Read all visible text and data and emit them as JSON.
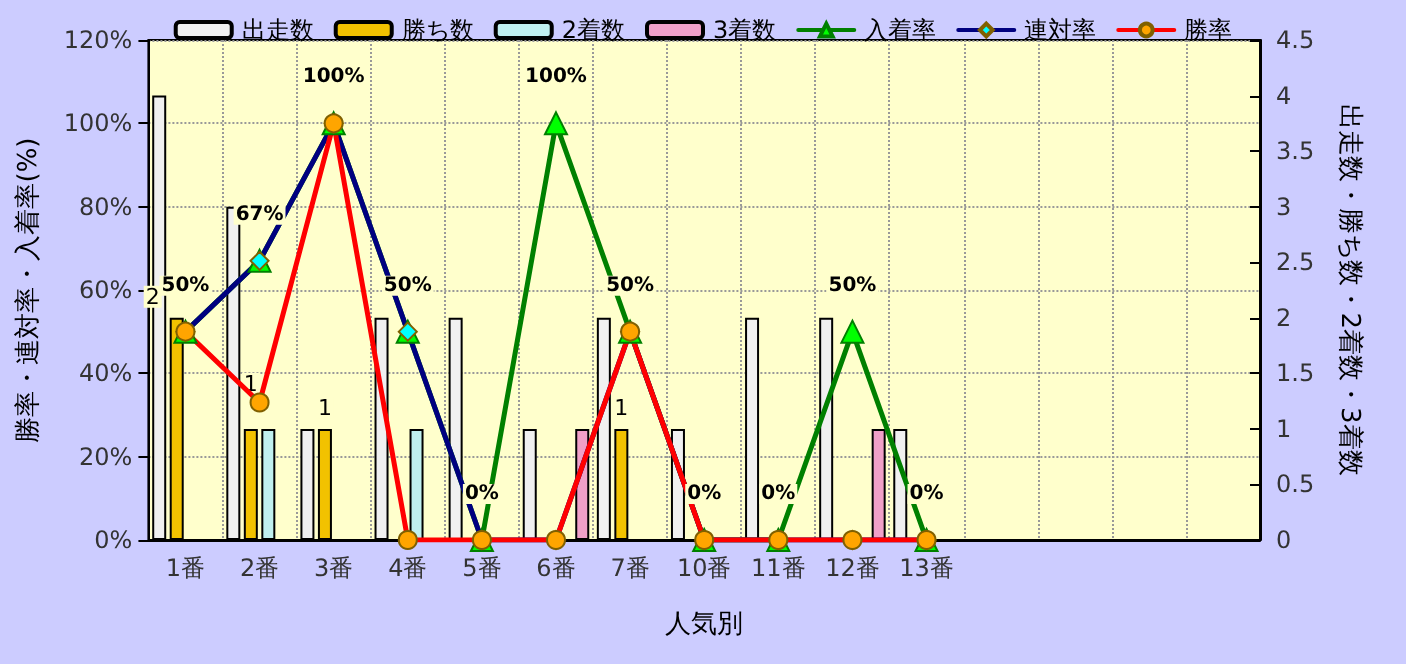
{
  "chart_data": {
    "type": "bar",
    "xlabel": "人気別",
    "ylabel": "勝率・連対率・入着率(%)",
    "y2label": "出走数・勝ち数・2着数・3着数",
    "categories": [
      "1番",
      "2番",
      "3番",
      "4番",
      "5番",
      "6番",
      "7番",
      "10番",
      "11番",
      "12番",
      "13番",
      null,
      null,
      null,
      null
    ],
    "series": [
      {
        "name": "出走数",
        "type": "bar",
        "axis": "y2",
        "color": "#f0f0f0",
        "values": [
          4,
          3,
          1,
          2,
          2,
          1,
          2,
          1,
          2,
          2,
          1,
          null,
          null,
          null,
          null
        ]
      },
      {
        "name": "勝ち数",
        "type": "bar",
        "axis": "y2",
        "color": "#f2c200",
        "values": [
          2,
          1,
          1,
          0,
          0,
          0,
          1,
          0,
          0,
          0,
          0,
          null,
          null,
          null,
          null
        ],
        "value_labels": [
          "2",
          "1",
          "1",
          null,
          null,
          null,
          "1",
          null,
          null,
          null,
          null,
          null,
          null,
          null,
          null
        ]
      },
      {
        "name": "2着数",
        "type": "bar",
        "axis": "y2",
        "color": "#c0f0f0",
        "values": [
          0,
          1,
          0,
          1,
          0,
          0,
          0,
          0,
          0,
          0,
          0,
          null,
          null,
          null,
          null
        ]
      },
      {
        "name": "3着数",
        "type": "bar",
        "axis": "y2",
        "color": "#f0a0c8",
        "values": [
          0,
          0,
          0,
          0,
          0,
          1,
          0,
          0,
          0,
          1,
          0,
          null,
          null,
          null,
          null
        ]
      },
      {
        "name": "入着率",
        "type": "line",
        "axis": "y",
        "color": "#008000",
        "marker": "triangle",
        "values": [
          50,
          67,
          100,
          50,
          0,
          100,
          50,
          0,
          0,
          50,
          0,
          null,
          null,
          null,
          null
        ],
        "value_labels": [
          "50%",
          "67%",
          "100%",
          "50%",
          "0%",
          "100%",
          "50%",
          "0%",
          "0%",
          "50%",
          "0%",
          null,
          null,
          null,
          null
        ]
      },
      {
        "name": "連対率",
        "type": "line",
        "axis": "y",
        "color": "#000080",
        "marker": "diamond",
        "values": [
          50,
          67,
          100,
          50,
          0,
          0,
          50,
          0,
          0,
          0,
          0,
          null,
          null,
          null,
          null
        ]
      },
      {
        "name": "勝率",
        "type": "line",
        "axis": "y",
        "color": "#ff0000",
        "marker": "circle",
        "values": [
          50,
          33,
          100,
          0,
          0,
          0,
          50,
          0,
          0,
          0,
          0,
          null,
          null,
          null,
          null
        ]
      }
    ],
    "ylim": [
      0,
      120
    ],
    "yticks": [
      {
        "value": 0,
        "label": "0%"
      },
      {
        "value": 20,
        "label": "20%"
      },
      {
        "value": 40,
        "label": "40%"
      },
      {
        "value": 60,
        "label": "60%"
      },
      {
        "value": 80,
        "label": "80%"
      },
      {
        "value": 100,
        "label": "100%"
      },
      {
        "value": 120,
        "label": "120%"
      }
    ],
    "y2lim": [
      0,
      4.5
    ],
    "y2ticks": [
      0,
      0.5,
      1,
      1.5,
      2,
      2.5,
      3,
      3.5,
      4,
      4.5
    ],
    "grid": true,
    "legend": "top",
    "line_style": "solid"
  }
}
